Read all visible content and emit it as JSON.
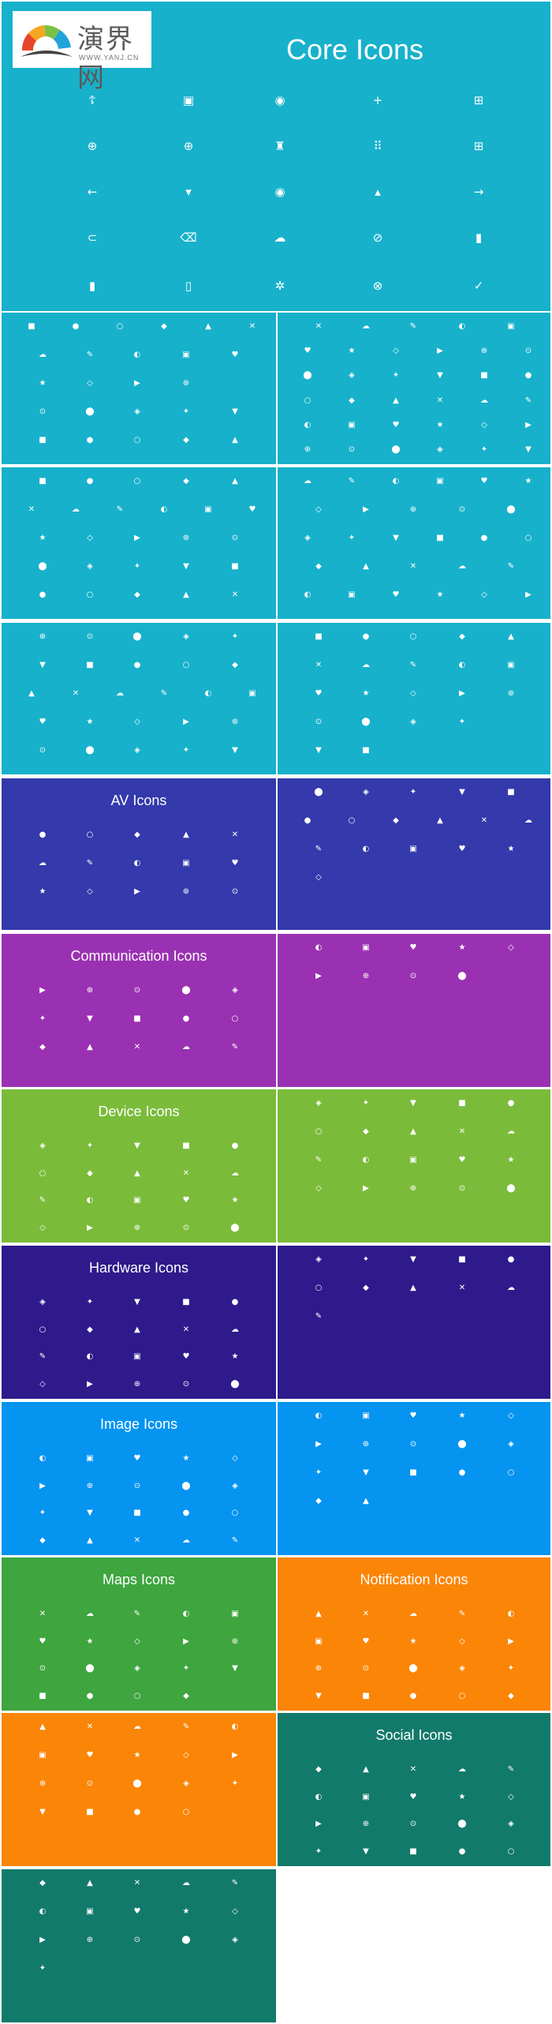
{
  "logo": {
    "cn": "演界网",
    "url": "WWW.YANJ.CN"
  },
  "core_title": "Core Icons",
  "colors": {
    "teal": "#17b1cb",
    "indigo": "#3439ab",
    "purple": "#9a31b2",
    "green": "#7bbb3a",
    "deep_purple": "#2f1a8c",
    "blue": "#0594f0",
    "maps_green": "#3ea53f",
    "orange": "#fb8507",
    "social_teal": "#127a6b"
  },
  "panels": [
    {
      "name": "core-panel-1",
      "color": "#17b1cb",
      "title": "",
      "layout": [
        6,
        5,
        4,
        5,
        5
      ]
    },
    {
      "name": "core-panel-2",
      "color": "#17b1cb",
      "title": "",
      "layout": [
        5,
        6,
        6,
        6,
        6,
        6
      ]
    },
    {
      "name": "core-panel-3",
      "color": "#17b1cb",
      "title": "",
      "layout": [
        5,
        6,
        5,
        5,
        5
      ]
    },
    {
      "name": "core-panel-4",
      "color": "#17b1cb",
      "title": "",
      "layout": [
        6,
        5,
        6,
        5,
        6
      ]
    },
    {
      "name": "core-panel-5",
      "color": "#17b1cb",
      "title": "",
      "layout": [
        5,
        5,
        6,
        5,
        5
      ]
    },
    {
      "name": "core-panel-6",
      "color": "#17b1cb",
      "title": "",
      "layout": [
        5,
        5,
        5,
        4,
        2
      ]
    },
    {
      "name": "av-panel",
      "color": "#3439ab",
      "title": "AV Icons",
      "layout": [
        5,
        5,
        5
      ]
    },
    {
      "name": "av-panel-2",
      "color": "#3439ab",
      "title": "",
      "layout": [
        5,
        6,
        5,
        1
      ]
    },
    {
      "name": "communication-panel",
      "color": "#9a31b2",
      "title": "Communication Icons",
      "layout": [
        5,
        5,
        5
      ]
    },
    {
      "name": "communication-panel-2",
      "color": "#9a31b2",
      "title": "",
      "layout": [
        5,
        4
      ]
    },
    {
      "name": "device-panel",
      "color": "#7bbb3a",
      "title": "Device Icons",
      "layout": [
        5,
        5,
        5,
        5
      ]
    },
    {
      "name": "device-panel-2",
      "color": "#7bbb3a",
      "title": "",
      "layout": [
        5,
        5,
        5,
        5
      ]
    },
    {
      "name": "hardware-panel",
      "color": "#2f1a8c",
      "title": "Hardware Icons",
      "layout": [
        5,
        5,
        5,
        5
      ]
    },
    {
      "name": "hardware-panel-2",
      "color": "#2f1a8c",
      "title": "",
      "layout": [
        5,
        5,
        1
      ]
    },
    {
      "name": "image-panel",
      "color": "#0594f0",
      "title": "Image Icons",
      "layout": [
        5,
        5,
        5,
        5
      ]
    },
    {
      "name": "image-panel-2",
      "color": "#0594f0",
      "title": "",
      "layout": [
        5,
        5,
        5,
        2
      ]
    },
    {
      "name": "maps-panel",
      "color": "#3ea53f",
      "title": "Maps Icons",
      "layout": [
        5,
        5,
        5,
        4
      ]
    },
    {
      "name": "notification-panel",
      "color": "#fb8507",
      "title": "Notification Icons",
      "layout": [
        5,
        5,
        5,
        5
      ]
    },
    {
      "name": "notification-panel-2",
      "color": "#fb8507",
      "title": "",
      "layout": [
        5,
        5,
        5,
        4
      ]
    },
    {
      "name": "social-panel",
      "color": "#127a6b",
      "title": "Social Icons",
      "layout": [
        5,
        5,
        5,
        5
      ]
    },
    {
      "name": "social-panel-2",
      "color": "#127a6b",
      "title": "",
      "layout": [
        5,
        5,
        5,
        1
      ]
    }
  ],
  "core_icons": [
    [
      "accessibility-icon",
      "account-box-icon",
      "account-circle-icon",
      "add-icon",
      "add-box-icon"
    ],
    [
      "add-circle-icon",
      "add-circle-outline-icon",
      "android-icon",
      "apps-icon",
      "medical-box-icon"
    ],
    [
      "arrow-back-icon",
      "arrow-drop-down-icon",
      "arrow-drop-down-circle-icon",
      "arrow-drop-up-icon",
      "arrow-forward-icon"
    ],
    [
      "attachment-icon",
      "backspace-icon",
      "cloud-upload-icon",
      "block-icon",
      "book-icon"
    ],
    [
      "bookmark-icon",
      "bookmark-outline-icon",
      "bug-report-icon",
      "cancel-icon",
      "check-icon"
    ]
  ]
}
